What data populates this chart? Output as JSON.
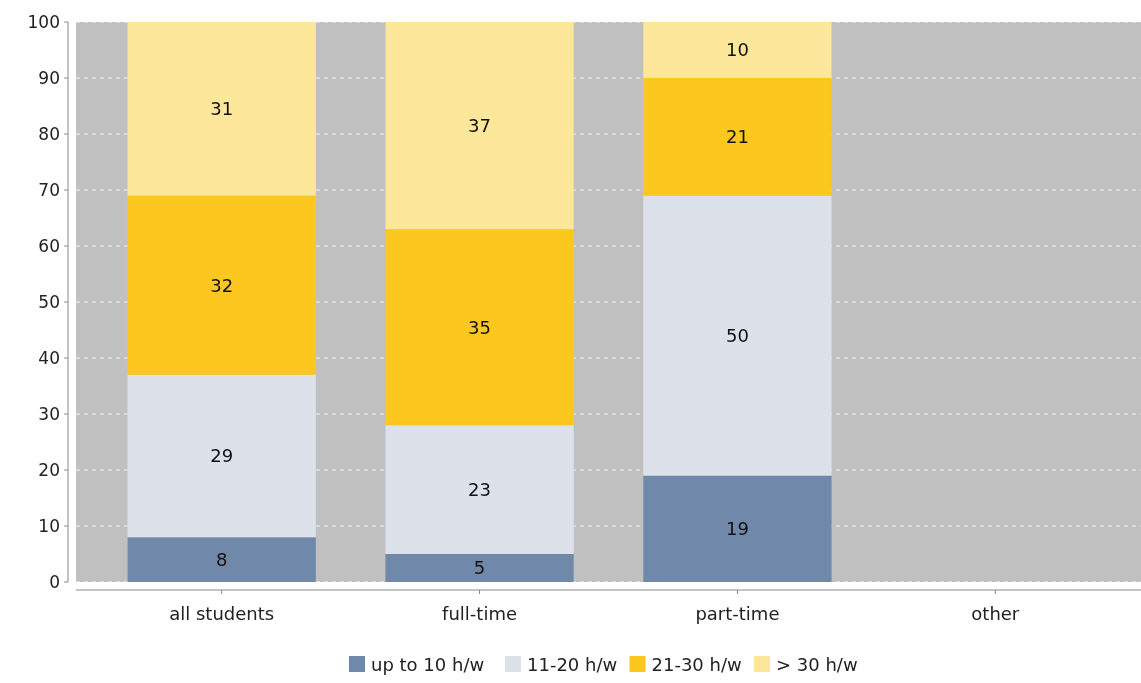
{
  "chart_data": {
    "type": "bar",
    "stacked": true,
    "categories": [
      "all students",
      "full-time",
      "part-time",
      "other"
    ],
    "series": [
      {
        "name": "up to 10 h/w",
        "color": "#7088aa",
        "values": [
          8,
          5,
          19,
          0
        ],
        "value_labels": [
          "8",
          "5",
          "19",
          null
        ]
      },
      {
        "name": "11-20 h/w",
        "color": "#dde1ea",
        "values": [
          29,
          23,
          50,
          0
        ],
        "value_labels": [
          "29",
          "23",
          "50",
          null
        ]
      },
      {
        "name": "21-30 h/w",
        "color": "#fcc820",
        "values": [
          32,
          35,
          21,
          0
        ],
        "value_labels": [
          "32",
          "35",
          "21",
          null
        ]
      },
      {
        "name": "> 30 h/w",
        "color": "#fde79a",
        "values": [
          31,
          37,
          10,
          0
        ],
        "value_labels": [
          "31",
          "37",
          "10",
          null
        ]
      }
    ],
    "ylim": [
      0,
      100
    ],
    "yticks": [
      0,
      10,
      20,
      30,
      40,
      50,
      60,
      70,
      80,
      90,
      100
    ],
    "grid": "y",
    "legend": "bottom"
  }
}
